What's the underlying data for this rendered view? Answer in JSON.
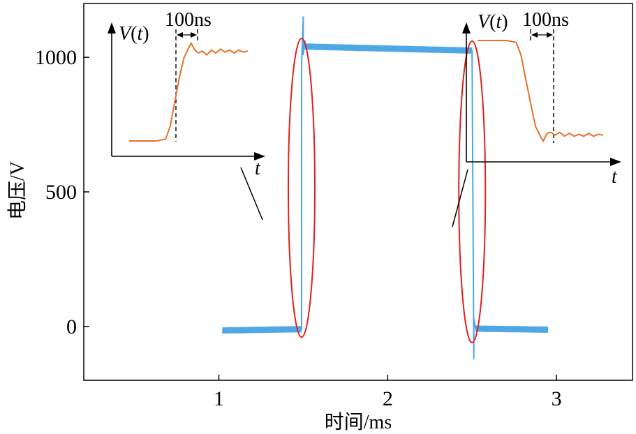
{
  "chart_data": {
    "type": "line",
    "xlabel": "时间/ms",
    "ylabel": "电压/V",
    "xlim": [
      0.2,
      3.45
    ],
    "ylim": [
      -200,
      1200
    ],
    "x_ticks": [
      1,
      2,
      3
    ],
    "x_tick_labels": [
      "1",
      "2",
      "3"
    ],
    "y_ticks": [
      0,
      500,
      1000
    ],
    "y_tick_labels": [
      "0",
      "500",
      "1000"
    ],
    "grid": false,
    "series": [
      {
        "name": "电压",
        "color": "#4fa7e6",
        "x": [
          1.02,
          1.49,
          1.49,
          1.5,
          1.5,
          1.51,
          1.51,
          1.6,
          2.0,
          2.5,
          2.5,
          2.51,
          2.51,
          2.52,
          2.6,
          2.95
        ],
        "y": [
          -15,
          -10,
          980,
          1150,
          1010,
          1060,
          1040,
          1042,
          1035,
          1025,
          1010,
          -120,
          30,
          -8,
          -15,
          -12
        ]
      }
    ],
    "highlights": [
      {
        "name": "rising-edge-ellipse",
        "x_center": 1.49,
        "y_range": [
          -40,
          1070
        ],
        "color": "#e02020"
      },
      {
        "name": "falling-edge-ellipse",
        "x_center": 2.5,
        "y_range": [
          -60,
          1060
        ],
        "color": "#e02020"
      }
    ],
    "insets": [
      {
        "name": "rise",
        "y_label_var": "V",
        "y_label_arg": "t",
        "x_label": "t",
        "annotation": "100ns",
        "color": "#e8702a",
        "t": [
          0,
          0.3,
          0.4,
          0.45,
          0.5,
          0.55,
          0.6,
          0.65,
          0.68,
          0.72,
          0.76,
          0.8,
          0.85,
          0.9,
          0.95,
          1.0,
          1.05,
          1.1,
          1.15,
          1.2,
          1.25,
          1.3
        ],
        "v": [
          0,
          0,
          0.02,
          0.15,
          0.4,
          0.65,
          0.85,
          0.95,
          1.0,
          0.93,
          0.9,
          0.92,
          0.88,
          0.93,
          0.9,
          0.94,
          0.91,
          0.93,
          0.9,
          0.93,
          0.91,
          0.92
        ]
      },
      {
        "name": "fall",
        "y_label_var": "V",
        "y_label_arg": "t",
        "x_label": "t",
        "annotation": "100ns",
        "color": "#e8702a",
        "t": [
          0,
          0.3,
          0.4,
          0.45,
          0.5,
          0.55,
          0.6,
          0.65,
          0.68,
          0.72,
          0.76,
          0.8,
          0.85,
          0.9,
          0.95,
          1.0,
          1.05,
          1.1,
          1.15,
          1.2,
          1.25,
          1.3
        ],
        "v": [
          1,
          1,
          0.98,
          0.85,
          0.6,
          0.35,
          0.12,
          0.02,
          -0.03,
          0.05,
          0.06,
          0.03,
          0.06,
          0.02,
          0.05,
          0.02,
          0.04,
          0.02,
          0.05,
          0.02,
          0.04,
          0.03
        ]
      }
    ]
  }
}
